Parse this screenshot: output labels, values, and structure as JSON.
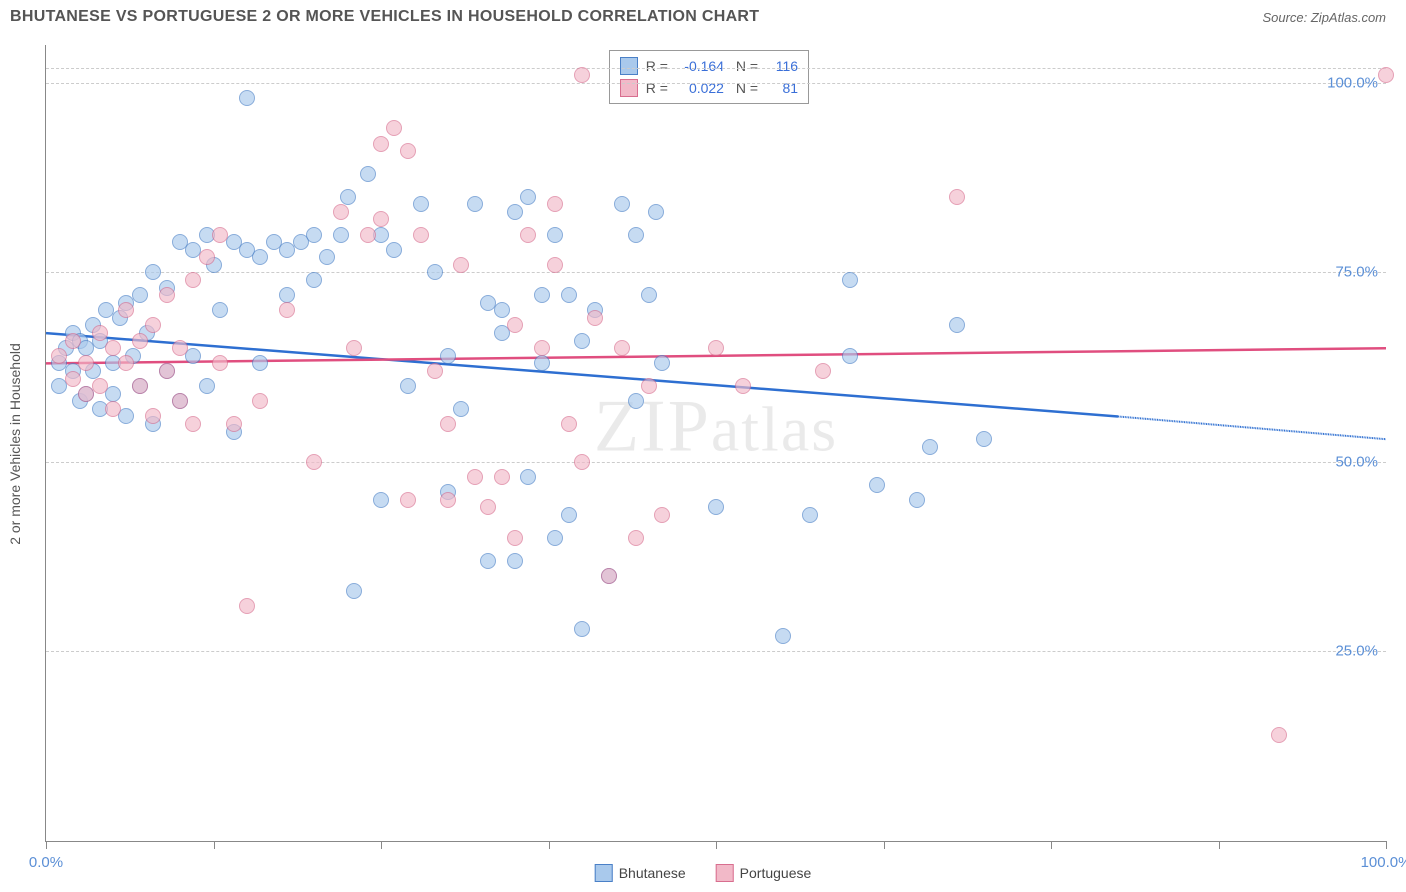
{
  "header": {
    "title": "BHUTANESE VS PORTUGUESE 2 OR MORE VEHICLES IN HOUSEHOLD CORRELATION CHART",
    "source": "Source: ZipAtlas.com"
  },
  "chart": {
    "type": "scatter",
    "ylabel": "2 or more Vehicles in Household",
    "xlim": [
      0,
      100
    ],
    "ylim": [
      0,
      105
    ],
    "xticks": [
      0,
      12.5,
      25,
      37.5,
      50,
      62.5,
      75,
      87.5,
      100
    ],
    "xtick_labels": {
      "0": "0.0%",
      "100": "100.0%"
    },
    "yticks": [
      25,
      50,
      75,
      100
    ],
    "ytick_labels": [
      "25.0%",
      "50.0%",
      "75.0%",
      "100.0%"
    ],
    "grid_color": "#cccccc",
    "background_color": "#ffffff",
    "axis_color": "#888888",
    "tick_label_color": "#5b8fd6",
    "label_color": "#555555",
    "marker_radius": 8,
    "marker_opacity": 0.65,
    "series": [
      {
        "name": "Bhutanese",
        "fill": "#a9c9ec",
        "stroke": "#4a80c7",
        "line_color": "#2e6fd1",
        "R": "-0.164",
        "N": "116",
        "trend": {
          "x1": 0,
          "y1": 67,
          "x2_solid": 80,
          "y2_solid": 56,
          "x2_dash": 100,
          "y2_dash": 53
        },
        "points": [
          [
            1,
            63
          ],
          [
            1,
            60
          ],
          [
            1.5,
            65
          ],
          [
            2,
            62
          ],
          [
            2,
            67
          ],
          [
            2.5,
            58
          ],
          [
            2.5,
            66
          ],
          [
            3,
            65
          ],
          [
            3,
            59
          ],
          [
            3.5,
            68
          ],
          [
            3.5,
            62
          ],
          [
            4,
            66
          ],
          [
            4,
            57
          ],
          [
            4.5,
            70
          ],
          [
            5,
            63
          ],
          [
            5,
            59
          ],
          [
            5.5,
            69
          ],
          [
            6,
            56
          ],
          [
            6,
            71
          ],
          [
            6.5,
            64
          ],
          [
            7,
            72
          ],
          [
            7,
            60
          ],
          [
            7.5,
            67
          ],
          [
            8,
            75
          ],
          [
            8,
            55
          ],
          [
            9,
            62
          ],
          [
            9,
            73
          ],
          [
            10,
            79
          ],
          [
            10,
            58
          ],
          [
            11,
            78
          ],
          [
            11,
            64
          ],
          [
            12,
            80
          ],
          [
            12,
            60
          ],
          [
            12.5,
            76
          ],
          [
            13,
            70
          ],
          [
            14,
            79
          ],
          [
            14,
            54
          ],
          [
            15,
            78
          ],
          [
            15,
            98
          ],
          [
            16,
            77
          ],
          [
            16,
            63
          ],
          [
            17,
            79
          ],
          [
            18,
            78
          ],
          [
            18,
            72
          ],
          [
            19,
            79
          ],
          [
            20,
            80
          ],
          [
            20,
            74
          ],
          [
            21,
            77
          ],
          [
            22,
            80
          ],
          [
            22.5,
            85
          ],
          [
            23,
            33
          ],
          [
            24,
            88
          ],
          [
            25,
            80
          ],
          [
            25,
            45
          ],
          [
            26,
            78
          ],
          [
            27,
            60
          ],
          [
            28,
            84
          ],
          [
            29,
            75
          ],
          [
            30,
            64
          ],
          [
            30,
            46
          ],
          [
            31,
            57
          ],
          [
            32,
            84
          ],
          [
            33,
            71
          ],
          [
            33,
            37
          ],
          [
            34,
            67
          ],
          [
            34,
            70
          ],
          [
            35,
            83
          ],
          [
            35,
            37
          ],
          [
            36,
            48
          ],
          [
            36,
            85
          ],
          [
            37,
            72
          ],
          [
            37,
            63
          ],
          [
            38,
            80
          ],
          [
            38,
            40
          ],
          [
            39,
            72
          ],
          [
            39,
            43
          ],
          [
            40,
            66
          ],
          [
            40,
            28
          ],
          [
            41,
            70
          ],
          [
            42,
            35
          ],
          [
            43,
            84
          ],
          [
            44,
            58
          ],
          [
            44,
            80
          ],
          [
            45,
            72
          ],
          [
            45.5,
            83
          ],
          [
            46,
            63
          ],
          [
            50,
            44
          ],
          [
            55,
            27
          ],
          [
            57,
            43
          ],
          [
            60,
            64
          ],
          [
            60,
            74
          ],
          [
            62,
            47
          ],
          [
            65,
            45
          ],
          [
            66,
            52
          ],
          [
            68,
            68
          ],
          [
            70,
            53
          ]
        ]
      },
      {
        "name": "Portuguese",
        "fill": "#f2b9c8",
        "stroke": "#d86e8f",
        "line_color": "#e04e7f",
        "R": "0.022",
        "N": "81",
        "trend": {
          "x1": 0,
          "y1": 63,
          "x2_solid": 100,
          "y2_solid": 65,
          "x2_dash": 100,
          "y2_dash": 65
        },
        "points": [
          [
            1,
            64
          ],
          [
            2,
            61
          ],
          [
            2,
            66
          ],
          [
            3,
            63
          ],
          [
            3,
            59
          ],
          [
            4,
            67
          ],
          [
            4,
            60
          ],
          [
            5,
            65
          ],
          [
            5,
            57
          ],
          [
            6,
            63
          ],
          [
            6,
            70
          ],
          [
            7,
            60
          ],
          [
            7,
            66
          ],
          [
            8,
            56
          ],
          [
            8,
            68
          ],
          [
            9,
            62
          ],
          [
            9,
            72
          ],
          [
            10,
            65
          ],
          [
            10,
            58
          ],
          [
            11,
            74
          ],
          [
            11,
            55
          ],
          [
            12,
            77
          ],
          [
            13,
            63
          ],
          [
            13,
            80
          ],
          [
            14,
            55
          ],
          [
            15,
            31
          ],
          [
            16,
            58
          ],
          [
            18,
            70
          ],
          [
            20,
            50
          ],
          [
            22,
            83
          ],
          [
            23,
            65
          ],
          [
            24,
            80
          ],
          [
            25,
            82
          ],
          [
            25,
            92
          ],
          [
            26,
            94
          ],
          [
            27,
            45
          ],
          [
            27,
            91
          ],
          [
            28,
            80
          ],
          [
            29,
            62
          ],
          [
            30,
            55
          ],
          [
            30,
            45
          ],
          [
            31,
            76
          ],
          [
            32,
            48
          ],
          [
            33,
            44
          ],
          [
            34,
            48
          ],
          [
            35,
            40
          ],
          [
            35,
            68
          ],
          [
            36,
            80
          ],
          [
            37,
            65
          ],
          [
            38,
            76
          ],
          [
            38,
            84
          ],
          [
            39,
            55
          ],
          [
            40,
            101
          ],
          [
            40,
            50
          ],
          [
            41,
            69
          ],
          [
            42,
            35
          ],
          [
            43,
            65
          ],
          [
            44,
            40
          ],
          [
            45,
            60
          ],
          [
            46,
            43
          ],
          [
            50,
            65
          ],
          [
            52,
            60
          ],
          [
            58,
            62
          ],
          [
            68,
            85
          ],
          [
            92,
            14
          ],
          [
            100,
            101
          ]
        ]
      }
    ],
    "legend": {
      "items": [
        "Bhutanese",
        "Portuguese"
      ]
    },
    "watermark": "ZIPatlas"
  }
}
